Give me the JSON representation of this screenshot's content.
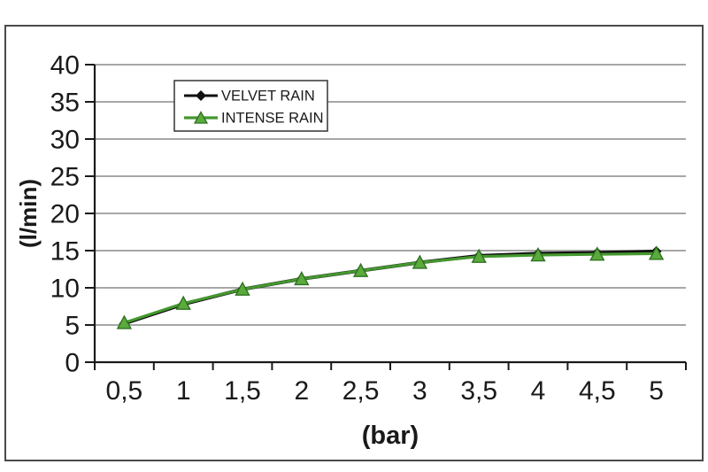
{
  "chart_data": {
    "type": "line",
    "title": "",
    "xlabel": "(bar)",
    "ylabel": "(l/min)",
    "x": [
      0.5,
      1,
      1.5,
      2,
      2.5,
      3,
      3.5,
      4,
      4.5,
      5
    ],
    "x_tick_labels": [
      "0,5",
      "1",
      "1,5",
      "2",
      "2,5",
      "3",
      "3,5",
      "4",
      "4,5",
      "5"
    ],
    "ylim": [
      0,
      40
    ],
    "yticks": [
      0,
      5,
      10,
      15,
      20,
      25,
      30,
      35,
      40
    ],
    "y_tick_labels": [
      "0",
      "5",
      "10",
      "15",
      "20",
      "25",
      "30",
      "35",
      "40"
    ],
    "grid": true,
    "legend_position": "top-left-inside",
    "series": [
      {
        "name": "VELVET RAIN",
        "marker": "diamond",
        "color": "#111111",
        "values": [
          5.2,
          7.8,
          9.8,
          11.2,
          12.3,
          13.4,
          14.3,
          14.6,
          14.7,
          14.9
        ]
      },
      {
        "name": "INTENSE RAIN",
        "marker": "triangle",
        "color": "#44982e",
        "marker_fill": "#5aab3c",
        "marker_edge": "#2f7020",
        "values": [
          5.3,
          7.9,
          9.8,
          11.2,
          12.3,
          13.4,
          14.2,
          14.4,
          14.5,
          14.6
        ]
      }
    ]
  },
  "colors": {
    "background": "#ffffff",
    "frame": "#4a4a4a",
    "grid": "#8a8a8a",
    "axis": "#1a1a1a",
    "text": "#1a1a1a"
  }
}
